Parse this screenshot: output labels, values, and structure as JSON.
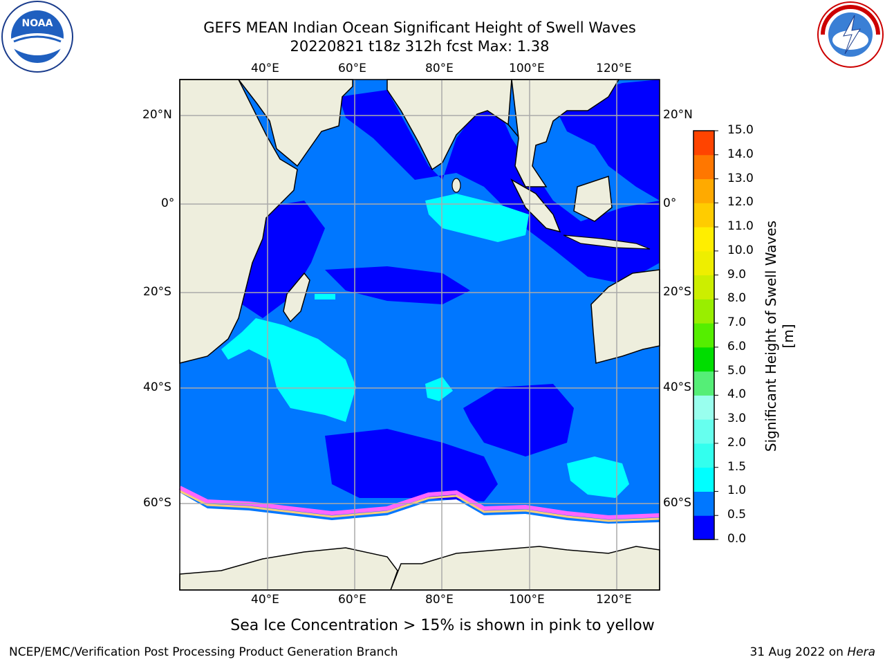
{
  "title": {
    "line1": "GEFS MEAN Indian Ocean Significant Height of Swell Waves",
    "line2": "20220821 t18z 312h fcst   Max: 1.38"
  },
  "map": {
    "lon_labels": [
      "40°E",
      "60°E",
      "80°E",
      "100°E",
      "120°E"
    ],
    "lat_labels": [
      "20°N",
      "0°",
      "20°S",
      "40°S",
      "60°S"
    ],
    "land_color": "#eeeedd",
    "ice_note_colors": [
      "#ff00ff",
      "#ffaa55",
      "#ffff66"
    ]
  },
  "colorbar": {
    "label": "Significant Height of Swell Waves [m]",
    "ticks": [
      "0.0",
      "0.5",
      "1.0",
      "1.5",
      "2.0",
      "3.0",
      "4.0",
      "5.0",
      "6.0",
      "7.0",
      "8.0",
      "9.0",
      "10.0",
      "11.0",
      "12.0",
      "13.0",
      "14.0",
      "15.0"
    ],
    "colors": [
      "#0000ff",
      "#0077ff",
      "#00ffff",
      "#33ffee",
      "#66ffee",
      "#99ffee",
      "#55ee77",
      "#00dd00",
      "#55ee00",
      "#99ee00",
      "#ccee00",
      "#eeee00",
      "#ffee00",
      "#ffcc00",
      "#ffaa00",
      "#ff7700",
      "#ff4400",
      "#ff0000"
    ]
  },
  "caption": "Sea Ice Concentration > 15% is shown in pink to yellow",
  "footer": {
    "left": "NCEP/EMC/Verification Post Processing Product Generation Branch",
    "right_prefix": "31 Aug 2022 on ",
    "right_machine": "Hera"
  },
  "logos": {
    "noaa": "NOAA",
    "nws": "NATIONAL WEATHER SERVICE"
  }
}
